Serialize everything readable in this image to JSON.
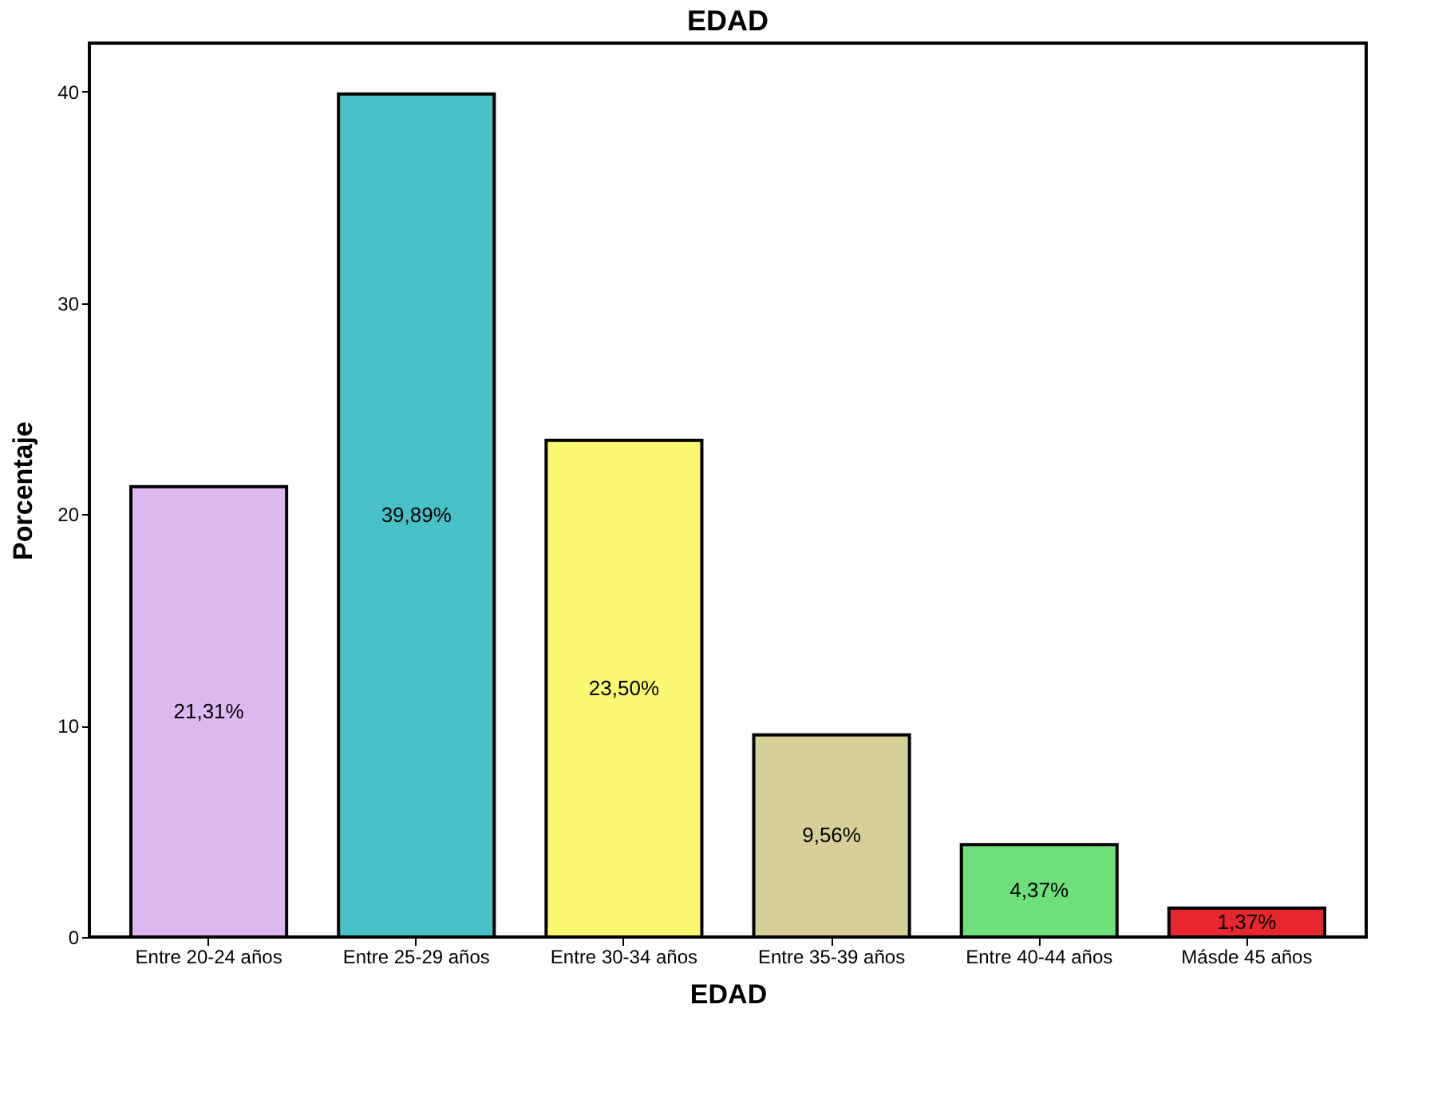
{
  "chart_data": {
    "type": "bar",
    "title": "EDAD",
    "xlabel": "EDAD",
    "ylabel": "Porcentaje",
    "categories": [
      "Entre 20-24 años",
      "Entre 25-29 años",
      "Entre 30-34 años",
      "Entre 35-39 años",
      "Entre 40-44 años",
      "Másde 45 años"
    ],
    "values": [
      21.31,
      39.89,
      23.5,
      9.56,
      4.37,
      1.37
    ],
    "colors": [
      "#dcb9f0",
      "#48c1c6",
      "#fbf872",
      "#d6cf98",
      "#6ee07a",
      "#e8262e"
    ],
    "value_labels": [
      "21,31%",
      "39,89%",
      "23,50%",
      "9,56%",
      "4,37%",
      "1,37%"
    ],
    "ylim": [
      0,
      42.3
    ],
    "yticks": [
      0,
      10,
      20,
      30,
      40
    ],
    "grid": false
  }
}
